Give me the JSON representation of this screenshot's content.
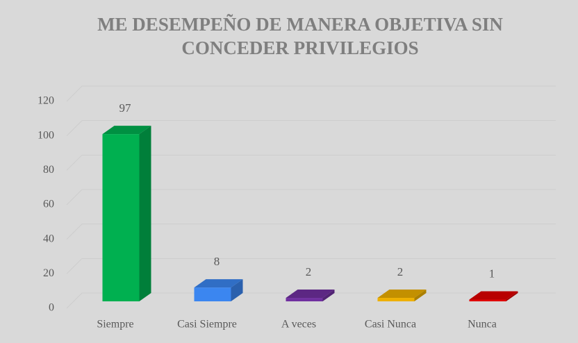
{
  "chart_data": {
    "type": "bar3d",
    "title": "ME DESEMPEÑO DE MANERA OBJETIVA SIN CONCEDER PRIVILEGIOS",
    "categories": [
      "Siempre",
      "Casi Siempre",
      "A veces",
      "Casi Nunca",
      "Nunca"
    ],
    "values": [
      97,
      8,
      2,
      2,
      1
    ],
    "colors": [
      "#00b050",
      "#3b86f0",
      "#7030a0",
      "#eeb000",
      "#e00000"
    ],
    "ylim": [
      0,
      120
    ],
    "yticks": [
      0,
      20,
      40,
      60,
      80,
      100,
      120
    ],
    "grid": true
  }
}
